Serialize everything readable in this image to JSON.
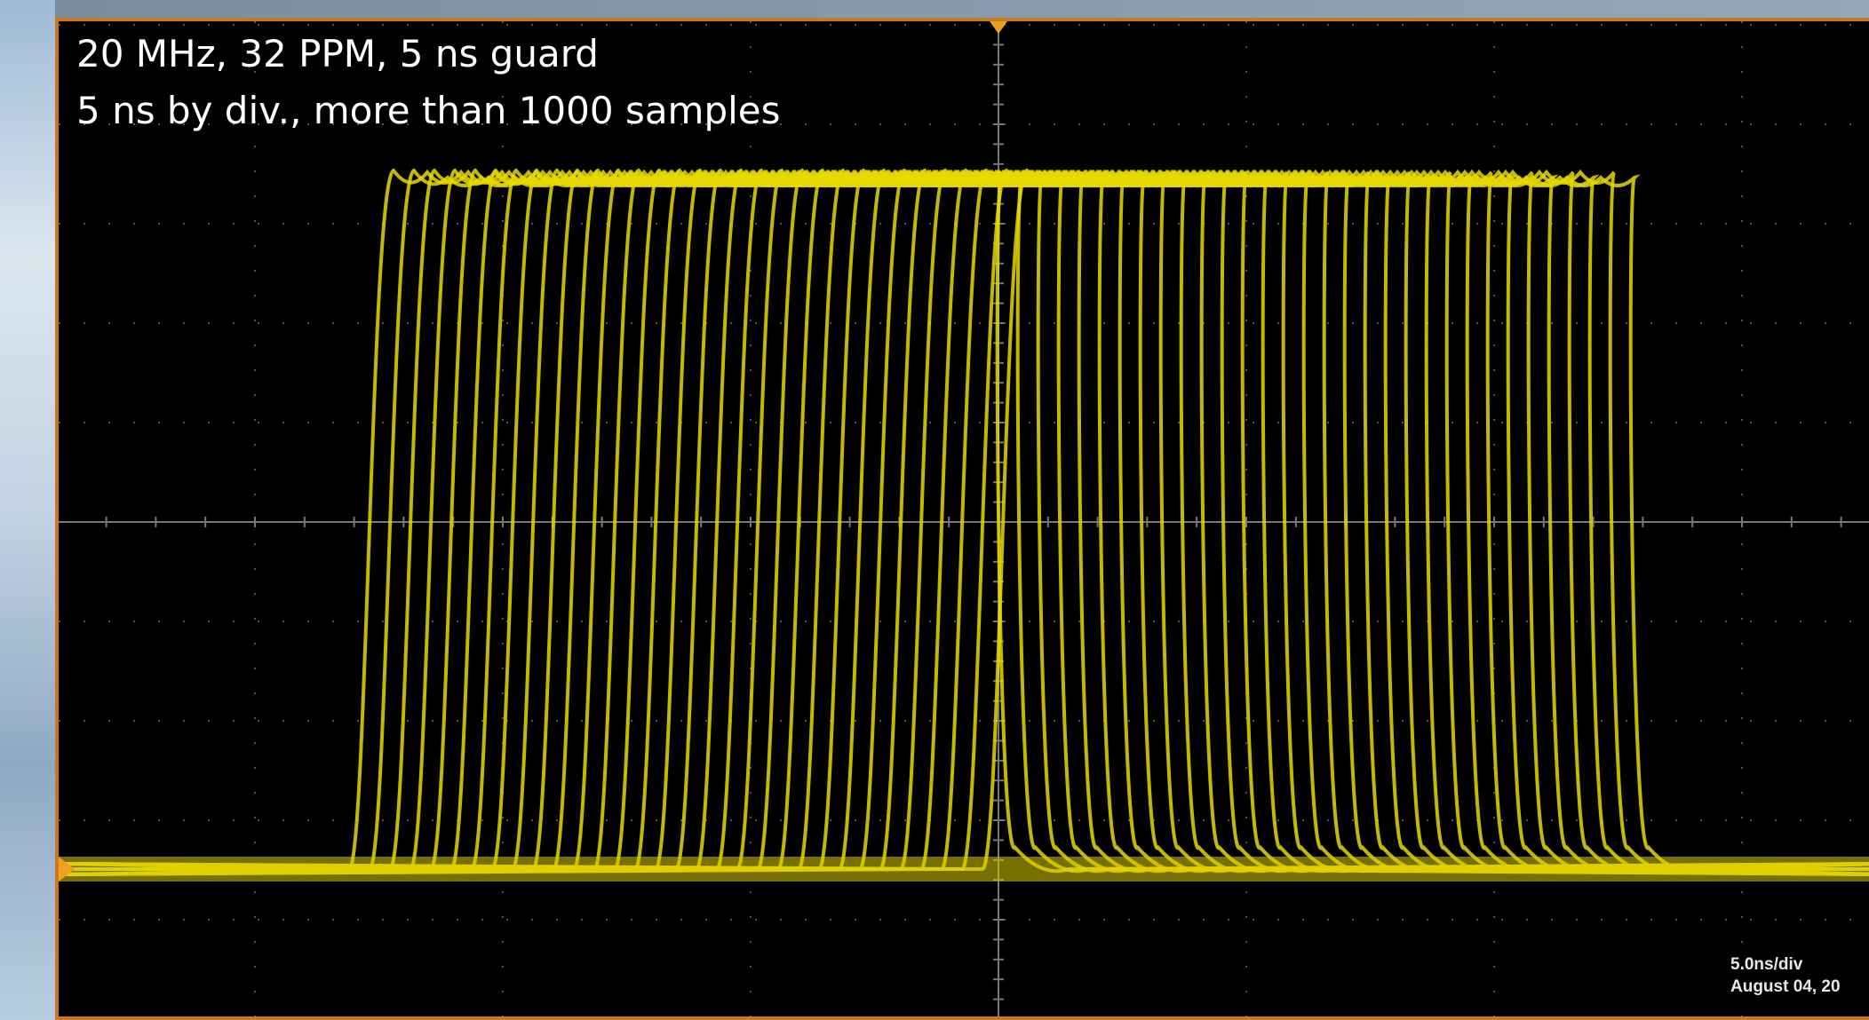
{
  "annotations": {
    "line1": "20 MHz, 32 PPM, 5 ns guard",
    "line2": "5 ns by div., more than 1000 samples"
  },
  "status": {
    "timebase": "5.0ns/div",
    "date": "August 04, 20"
  }
}
